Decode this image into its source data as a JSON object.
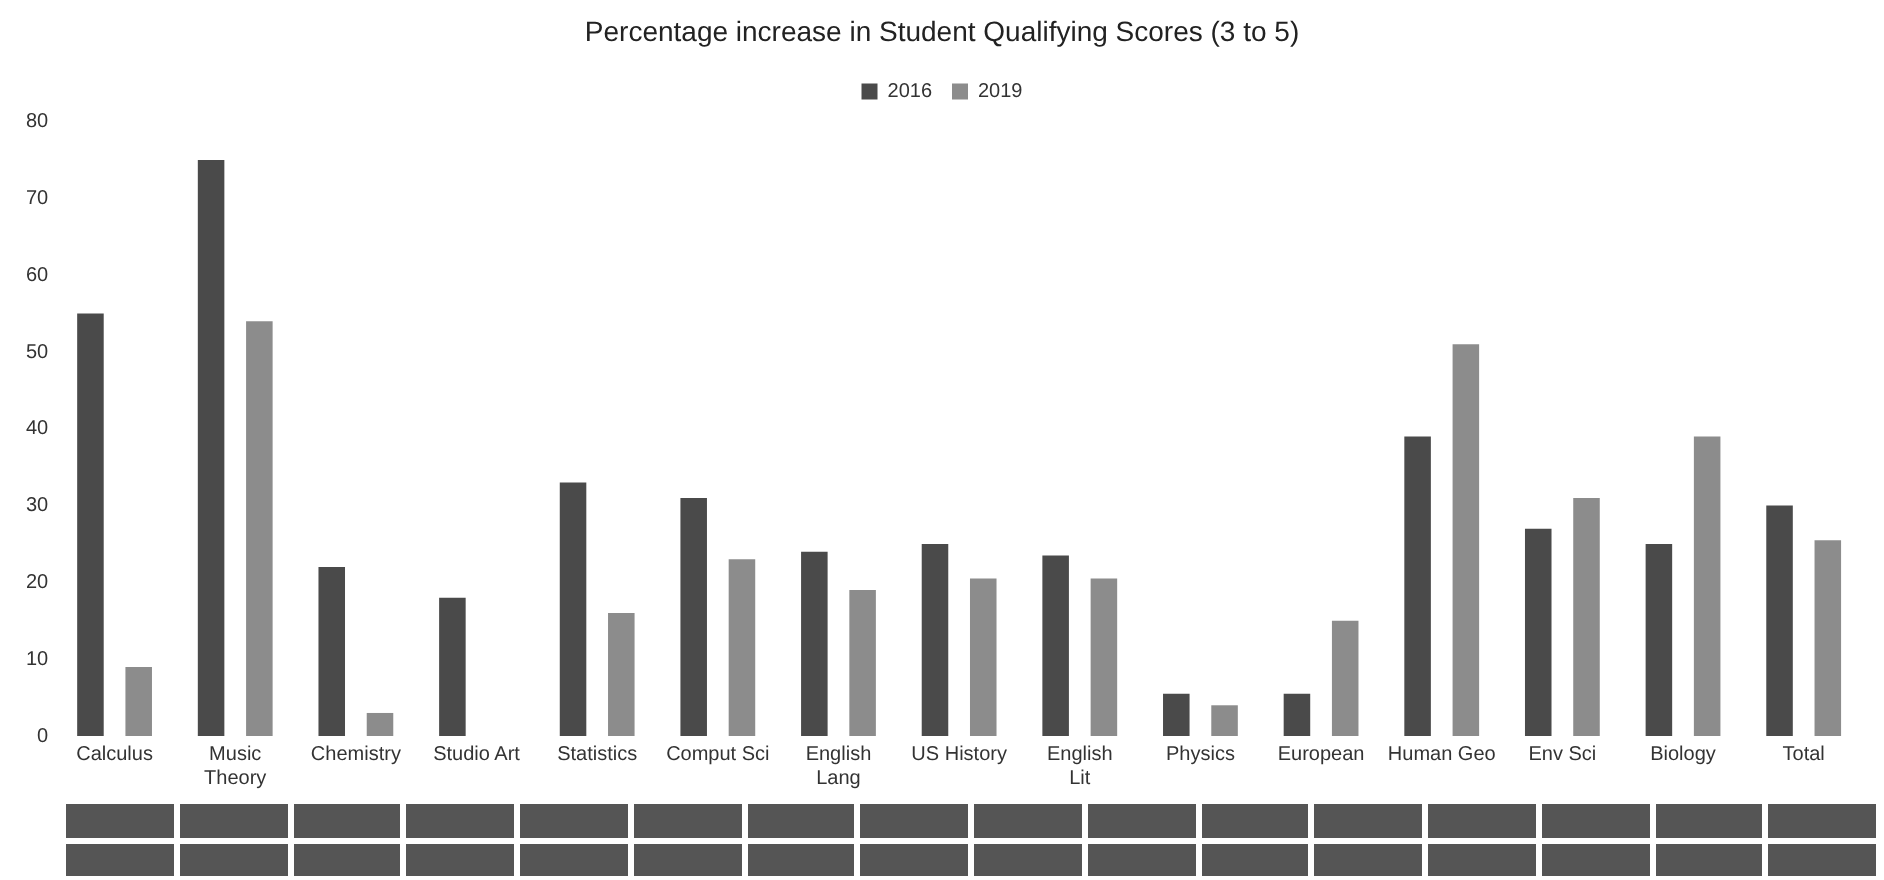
{
  "chart_data": {
    "type": "bar",
    "title": "Percentage increase in Student Qualifying Scores (3 to 5)",
    "categories": [
      "Calculus",
      "Music Theory",
      "Chemistry",
      "Studio Art",
      "Statistics",
      "Comput Sci",
      "English Lang",
      "US History",
      "English Lit",
      "Physics",
      "European",
      "Human Geo",
      "Env Sci",
      "Biology",
      "Total"
    ],
    "series": [
      {
        "name": "2016",
        "color": "#4a4a4a",
        "values": [
          55,
          75,
          22,
          18,
          33,
          31,
          24,
          25,
          23.5,
          5.5,
          5.5,
          39,
          27,
          25,
          30
        ]
      },
      {
        "name": "2019",
        "color": "#8c8c8c",
        "values": [
          9,
          54,
          3,
          null,
          16,
          23,
          19,
          20.5,
          20.5,
          4,
          15,
          51,
          31,
          39,
          25.5
        ]
      }
    ],
    "ylim": [
      0,
      80
    ],
    "yticks": [
      0,
      10,
      20,
      30,
      40,
      50,
      60,
      70,
      80
    ],
    "grid": false,
    "legend": "top"
  }
}
